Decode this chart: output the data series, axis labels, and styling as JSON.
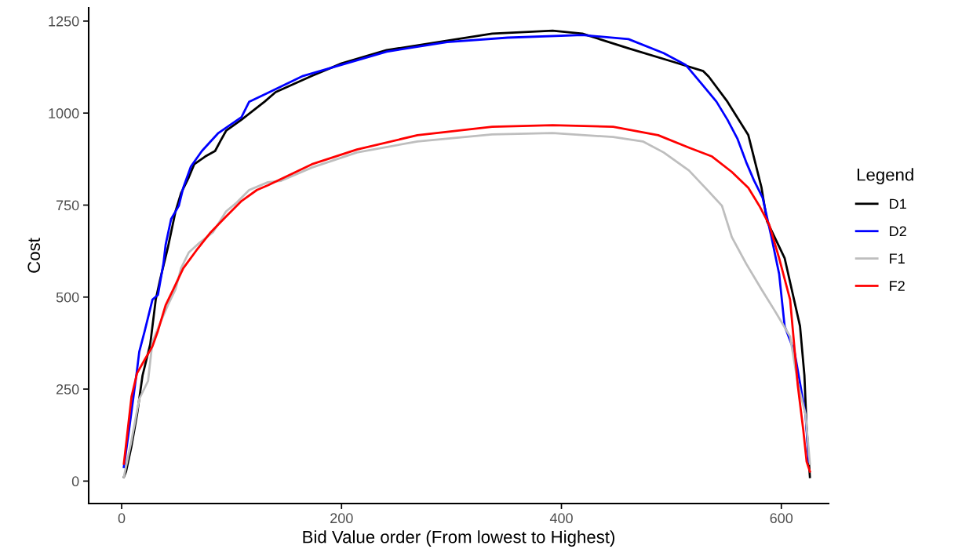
{
  "chart_data": {
    "type": "line",
    "xlabel": "Bid Value order (From lowest to Highest)",
    "ylabel": "Cost",
    "legend_title": "Legend",
    "legend": "right",
    "grid": false,
    "xlim": [
      -30,
      643
    ],
    "ylim": [
      -61,
      1286
    ],
    "xticks": [
      0,
      200,
      400,
      600
    ],
    "yticks": [
      0,
      250,
      500,
      750,
      1000,
      1250
    ],
    "series": [
      {
        "name": "D1",
        "color": "#000000",
        "x": [
          2,
          4,
          9,
          14,
          19,
          26,
          31,
          35,
          42,
          49,
          54,
          61,
          66,
          76,
          85,
          90,
          95,
          109,
          130,
          140,
          173,
          200,
          241,
          296,
          337,
          392,
          419,
          461,
          502,
          529,
          534,
          551,
          570,
          582,
          587,
          603,
          617,
          621,
          623,
          626
        ],
        "values": [
          11,
          26,
          96,
          181,
          287,
          372,
          493,
          548,
          634,
          733,
          782,
          825,
          861,
          882,
          897,
          925,
          952,
          982,
          1031,
          1057,
          1101,
          1135,
          1171,
          1197,
          1216,
          1224,
          1216,
          1176,
          1139,
          1114,
          1099,
          1031,
          940,
          797,
          706,
          606,
          421,
          287,
          145,
          11
        ]
      },
      {
        "name": "D2",
        "color": "#0000ff",
        "x": [
          2,
          6,
          14,
          16,
          21,
          28,
          33,
          38,
          40,
          45,
          52,
          56,
          63,
          73,
          88,
          109,
          116,
          131,
          165,
          195,
          241,
          296,
          351,
          419,
          461,
          493,
          513,
          529,
          541,
          551,
          560,
          568,
          575,
          583,
          591,
          598,
          603,
          612,
          617,
          622,
          625
        ],
        "values": [
          38,
          123,
          302,
          351,
          408,
          493,
          506,
          591,
          642,
          712,
          748,
          797,
          855,
          897,
          946,
          989,
          1031,
          1052,
          1101,
          1127,
          1167,
          1193,
          1205,
          1212,
          1201,
          1163,
          1131,
          1074,
          1031,
          982,
          931,
          867,
          818,
          770,
          663,
          563,
          421,
          351,
          266,
          181,
          53
        ]
      },
      {
        "name": "F1",
        "color": "#bebebe",
        "x": [
          2,
          9,
          16,
          24,
          28,
          35,
          42,
          49,
          54,
          61,
          71,
          83,
          95,
          104,
          116,
          133,
          145,
          173,
          214,
          269,
          337,
          392,
          447,
          474,
          493,
          516,
          534,
          546,
          555,
          568,
          582,
          594,
          608,
          615,
          622,
          626
        ],
        "values": [
          11,
          111,
          223,
          272,
          378,
          429,
          478,
          521,
          578,
          621,
          648,
          676,
          733,
          755,
          791,
          812,
          816,
          852,
          893,
          923,
          942,
          946,
          935,
          923,
          893,
          844,
          787,
          748,
          663,
          591,
          521,
          463,
          393,
          266,
          181,
          47
        ]
      },
      {
        "name": "F2",
        "color": "#ff0000",
        "x": [
          2,
          9,
          14,
          21,
          28,
          33,
          40,
          47,
          56,
          68,
          81,
          95,
          109,
          123,
          133,
          173,
          214,
          269,
          337,
          392,
          447,
          488,
          516,
          537,
          555,
          570,
          580,
          589,
          598,
          608,
          615,
          620,
          623,
          626
        ],
        "values": [
          47,
          230,
          293,
          330,
          366,
          408,
          478,
          521,
          578,
          627,
          676,
          719,
          761,
          791,
          804,
          861,
          901,
          940,
          963,
          967,
          963,
          940,
          906,
          882,
          840,
          797,
          748,
          697,
          606,
          493,
          259,
          138,
          53,
          26
        ]
      }
    ]
  }
}
